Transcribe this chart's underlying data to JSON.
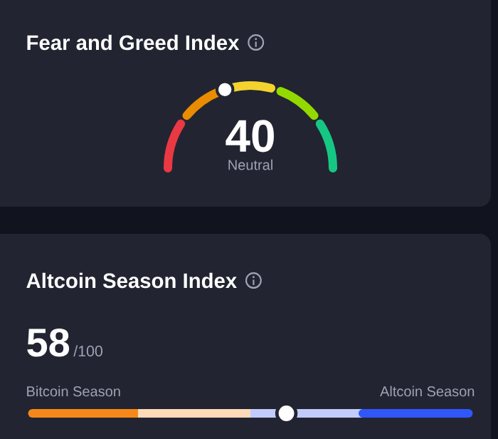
{
  "chart_data": [
    {
      "type": "other",
      "title": "Fear and Greed Index",
      "values": [
        40
      ],
      "data_labels": true,
      "annotations": [
        "Neutral"
      ]
    },
    {
      "type": "other",
      "title": "Altcoin Season Index",
      "values": [
        58
      ],
      "data_labels": true,
      "annotations": [
        "/100",
        "Bitcoin Season",
        "Altcoin Season"
      ]
    }
  ]
}
